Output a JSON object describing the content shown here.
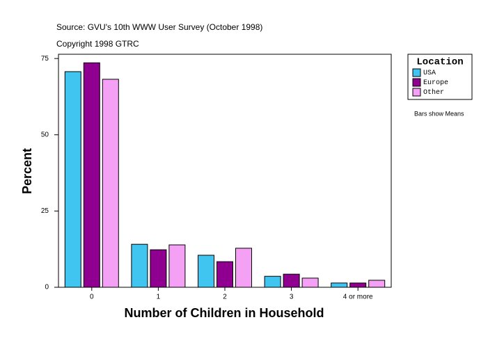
{
  "chart_data": {
    "type": "bar",
    "title": "Source: GVU's 10th WWW User Survey (October 1998)",
    "subtitle": "Copyright 1998 GTRC",
    "annotation": "Bars show Means",
    "x_label": "Number of Children in Household",
    "y_label": "Percent",
    "legend_title": "Location",
    "categories": [
      "0",
      "1",
      "2",
      "3",
      "4 or more"
    ],
    "series": [
      {
        "name": "USA",
        "color": "#40c4f0",
        "values": [
          70.7,
          14.1,
          10.5,
          3.6,
          1.4
        ]
      },
      {
        "name": "Europe",
        "color": "#900090",
        "values": [
          73.6,
          12.3,
          8.4,
          4.3,
          1.4
        ]
      },
      {
        "name": "Other",
        "color": "#f4a0f4",
        "values": [
          68.2,
          13.9,
          12.8,
          3.0,
          2.3
        ]
      }
    ],
    "ylim": [
      0,
      76.4
    ],
    "yticks": [
      0,
      25,
      50,
      75
    ]
  }
}
